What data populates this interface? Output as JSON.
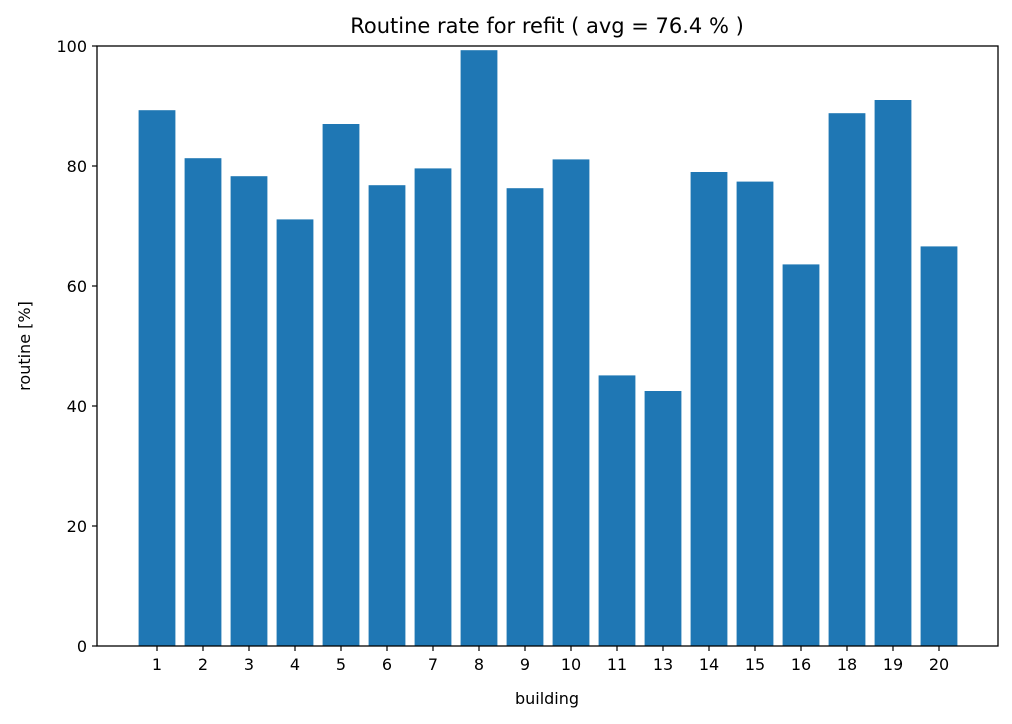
{
  "chart_data": {
    "type": "bar",
    "title": "Routine rate for refit ( avg = 76.4 % )",
    "xlabel": "building",
    "ylabel": "routine [%]",
    "ylim": [
      0,
      100
    ],
    "yticks": [
      "0",
      "20",
      "40",
      "60",
      "80",
      "100"
    ],
    "categories": [
      "1",
      "2",
      "3",
      "4",
      "5",
      "6",
      "7",
      "8",
      "9",
      "10",
      "11",
      "13",
      "14",
      "15",
      "16",
      "18",
      "19",
      "20"
    ],
    "values": [
      89.3,
      81.3,
      78.3,
      71.1,
      87.0,
      76.8,
      79.6,
      99.3,
      76.3,
      81.1,
      45.1,
      42.5,
      79.0,
      77.4,
      63.6,
      88.8,
      91.0,
      66.6
    ],
    "bar_color": "#1f77b4",
    "grid": false,
    "legend": "none"
  }
}
